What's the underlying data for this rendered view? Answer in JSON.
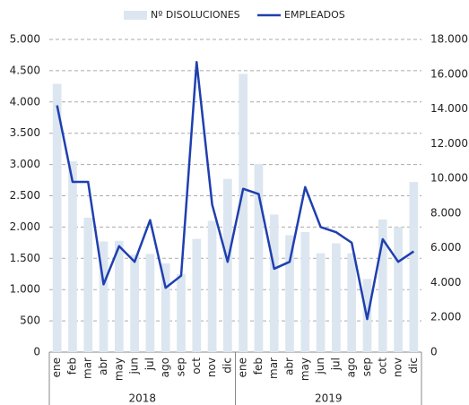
{
  "chart_data": {
    "type": "bar_line",
    "categories": [
      "ene",
      "feb",
      "mar",
      "abr",
      "may",
      "jun",
      "jul",
      "ago",
      "sep",
      "oct",
      "nov",
      "dic",
      "ene",
      "feb",
      "mar",
      "abr",
      "may",
      "jun",
      "jul",
      "ago",
      "sep",
      "oct",
      "nov",
      "dic"
    ],
    "groups": [
      "2018",
      "2019"
    ],
    "series": [
      {
        "name": "Nº DISOLUCIONES",
        "type": "bar",
        "color": "#dce6f0",
        "axis": "y",
        "values": [
          4290,
          3050,
          2150,
          1770,
          1780,
          1560,
          1570,
          1420,
          1250,
          1810,
          2100,
          2770,
          4450,
          3010,
          2200,
          1870,
          1920,
          1580,
          1740,
          1580,
          1170,
          2120,
          2000,
          2720
        ]
      },
      {
        "name": "EMPLEADOS",
        "type": "line",
        "color": "#1f3fb0",
        "axis": "y2",
        "values": [
          14200,
          9800,
          9800,
          3900,
          6100,
          5200,
          7600,
          3700,
          4400,
          16700,
          8500,
          5200,
          9400,
          9100,
          4800,
          5200,
          9500,
          7200,
          6900,
          6300,
          1900,
          6500,
          5200,
          5800
        ]
      }
    ],
    "ylim": [
      0,
      5000
    ],
    "yticks": [
      0,
      500,
      {
        "value": 1000,
        "label": "1.000"
      },
      {
        "value": 1500,
        "label": "1.500"
      },
      {
        "value": 2000,
        "label": "2.000"
      },
      {
        "value": 2500,
        "label": "2.500"
      },
      {
        "value": 3000,
        "label": "3.000"
      },
      {
        "value": 3500,
        "label": "3.500"
      },
      {
        "value": 4000,
        "label": "4.000"
      },
      {
        "value": 4500,
        "label": "4.500"
      },
      {
        "value": 5000,
        "label": "5.000"
      }
    ],
    "y2lim": [
      0,
      18000
    ],
    "y2ticks": [
      0,
      {
        "value": 2000,
        "label": "2.000"
      },
      {
        "value": 4000,
        "label": "4.000"
      },
      {
        "value": 6000,
        "label": "6.000"
      },
      {
        "value": 8000,
        "label": "8.000"
      },
      {
        "value": 10000,
        "label": "10.000"
      },
      {
        "value": 12000,
        "label": "12.000"
      },
      {
        "value": 14000,
        "label": "14.000"
      },
      {
        "value": 16000,
        "label": "16.000"
      },
      {
        "value": 18000,
        "label": "18.000"
      }
    ],
    "grid": true
  }
}
